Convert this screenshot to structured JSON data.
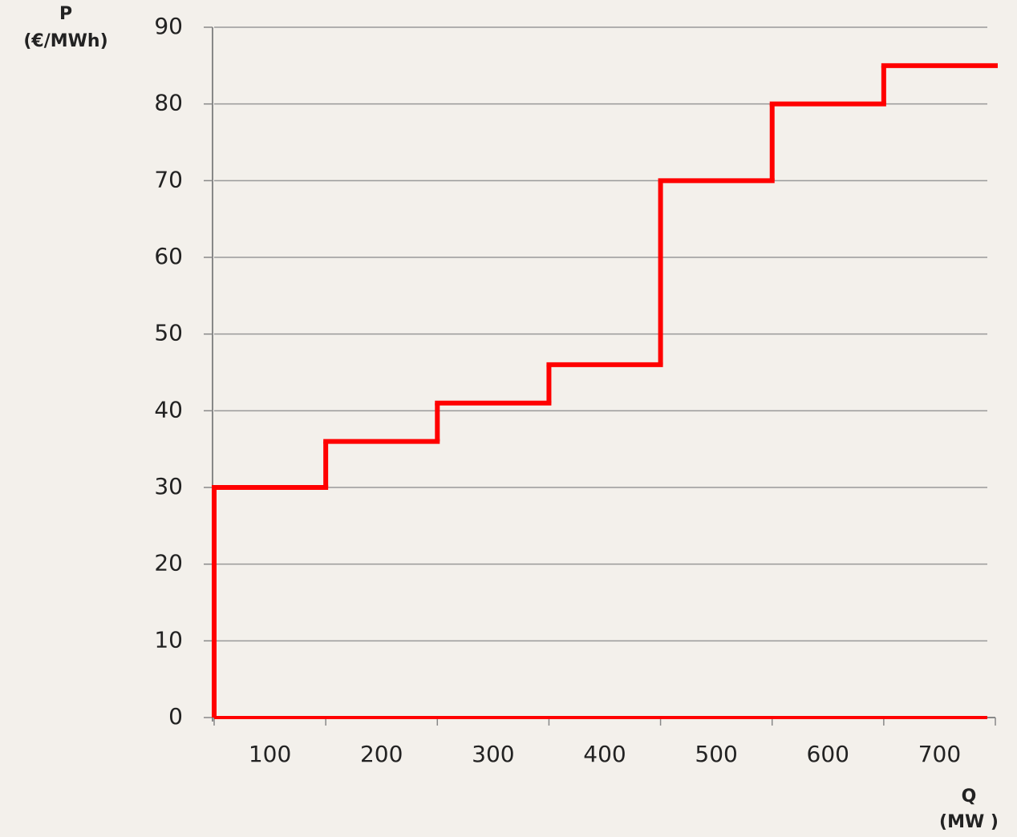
{
  "chart_data": {
    "type": "step",
    "y_label": [
      "P",
      "(€/MWh)"
    ],
    "x_label": [
      "Q",
      "(MW )"
    ],
    "categories": [
      "100",
      "200",
      "300",
      "400",
      "500",
      "600",
      "700"
    ],
    "values": [
      30,
      36,
      41,
      46,
      70,
      80,
      85
    ],
    "color": "#ff0000",
    "ylim": [
      0,
      90
    ],
    "yticks": [
      0,
      10,
      20,
      30,
      40,
      50,
      60,
      70,
      80,
      90
    ],
    "grid": true
  }
}
